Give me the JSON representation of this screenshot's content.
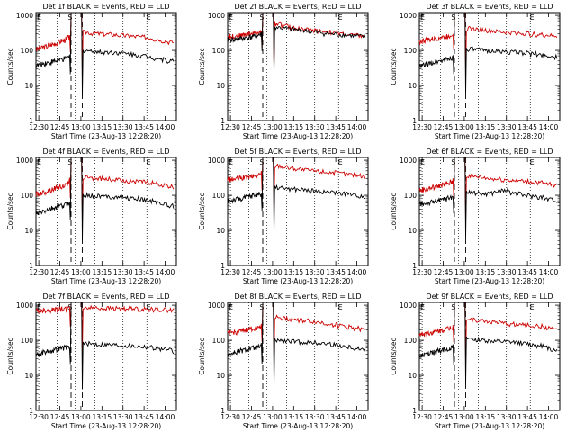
{
  "chart_data": [
    {
      "type": "line",
      "title": "Det 1f BLACK = Events, RED = LLD",
      "xlabel": "Start Time (23-Aug-13 12:28:20)",
      "ylabel": "Counts/sec",
      "x_ticks": [
        "12:30",
        "12:45",
        "13:00",
        "13:15",
        "13:30",
        "13:45",
        "14:00"
      ],
      "y_ticks": [
        "1",
        "10",
        "100",
        "1000"
      ],
      "x_range_min": [
        0,
        100
      ],
      "y_log_range": [
        1,
        1200
      ],
      "scale": "log",
      "markers": [
        {
          "label": "E",
          "at_min": 0
        },
        {
          "label": "S",
          "at_min": 22
        },
        {
          "label": "E",
          "at_min": 78
        }
      ],
      "dotted_lines_min": [
        2,
        15,
        28,
        42,
        62,
        79
      ],
      "dashed_lines_min": [
        25,
        33
      ],
      "series": [
        {
          "color": "#cc0000",
          "baseline": [
            110,
            115,
            125,
            130,
            140,
            150,
            160,
            175,
            190,
            200,
            230,
            300
          ],
          "peak": 1200,
          "tail": [
            330,
            310,
            300,
            290,
            280,
            270,
            260,
            250,
            240,
            230,
            210,
            190,
            175,
            170
          ]
        },
        {
          "color": "#000000",
          "baseline": [
            38,
            40,
            42,
            45,
            45,
            48,
            50,
            52,
            55,
            58,
            62,
            70
          ],
          "peak": 1200,
          "tail": [
            100,
            95,
            90,
            90,
            88,
            85,
            80,
            75,
            70,
            65,
            60,
            55,
            50,
            48
          ]
        }
      ]
    },
    {
      "type": "line",
      "title": "Det 2f BLACK = Events, RED = LLD",
      "xlabel": "Start Time (23-Aug-13 12:28:20)",
      "ylabel": "Counts/sec",
      "x_ticks": [
        "12:30",
        "12:45",
        "13:00",
        "13:15",
        "13:30",
        "13:45",
        "14:00"
      ],
      "y_ticks": [
        "1",
        "10",
        "100",
        "1000"
      ],
      "x_range_min": [
        0,
        100
      ],
      "y_log_range": [
        1,
        1200
      ],
      "scale": "log",
      "markers": [
        {
          "label": "E",
          "at_min": 0
        },
        {
          "label": "S",
          "at_min": 22
        },
        {
          "label": "E",
          "at_min": 78
        }
      ],
      "dotted_lines_min": [
        2,
        15,
        28,
        42,
        62,
        79
      ],
      "dashed_lines_min": [
        25,
        33
      ],
      "series": [
        {
          "color": "#cc0000",
          "baseline": [
            250,
            255,
            260,
            265,
            270,
            280,
            290,
            300,
            310,
            320,
            340,
            400
          ],
          "peak": 1200,
          "tail": [
            600,
            500,
            450,
            420,
            400,
            380,
            360,
            340,
            320,
            300,
            280,
            270,
            260,
            250
          ]
        },
        {
          "color": "#000000",
          "baseline": [
            200,
            205,
            210,
            215,
            220,
            225,
            230,
            240,
            250,
            260,
            280,
            320
          ],
          "peak": 1200,
          "tail": [
            450,
            420,
            400,
            380,
            360,
            340,
            320,
            300,
            290,
            280,
            270,
            260,
            250,
            240
          ]
        }
      ]
    },
    {
      "type": "line",
      "title": "Det 3f BLACK = Events, RED = LLD",
      "xlabel": "Start Time (23-Aug-13 12:28:20)",
      "ylabel": "Counts/sec",
      "x_ticks": [
        "12:30",
        "12:45",
        "13:00",
        "13:15",
        "13:30",
        "13:45",
        "14:00"
      ],
      "y_ticks": [
        "1",
        "10",
        "100",
        "1000"
      ],
      "x_range_min": [
        0,
        100
      ],
      "y_log_range": [
        1,
        1200
      ],
      "scale": "log",
      "markers": [
        {
          "label": "E",
          "at_min": 0
        },
        {
          "label": "S",
          "at_min": 22
        },
        {
          "label": "E",
          "at_min": 78
        }
      ],
      "dotted_lines_min": [
        2,
        15,
        28,
        42,
        62,
        79
      ],
      "dashed_lines_min": [
        25,
        33
      ],
      "series": [
        {
          "color": "#cc0000",
          "baseline": [
            180,
            190,
            200,
            200,
            210,
            220,
            230,
            240,
            250,
            260,
            280,
            340
          ],
          "peak": 1200,
          "tail": [
            420,
            400,
            380,
            360,
            340,
            330,
            320,
            310,
            300,
            290,
            280,
            270,
            260,
            250
          ]
        },
        {
          "color": "#000000",
          "baseline": [
            35,
            38,
            40,
            42,
            45,
            48,
            50,
            52,
            55,
            58,
            62,
            70
          ],
          "peak": 1200,
          "tail": [
            110,
            105,
            100,
            98,
            95,
            92,
            90,
            88,
            85,
            80,
            75,
            70,
            65,
            60
          ]
        }
      ]
    },
    {
      "type": "line",
      "title": "Det 4f BLACK = Events, RED = LLD",
      "xlabel": "Start Time (23-Aug-13 12:28:20)",
      "ylabel": "Counts/sec",
      "x_ticks": [
        "12:30",
        "12:45",
        "13:00",
        "13:15",
        "13:30",
        "13:45",
        "14:00"
      ],
      "y_ticks": [
        "1",
        "10",
        "100",
        "1000"
      ],
      "x_range_min": [
        0,
        100
      ],
      "y_log_range": [
        1,
        1200
      ],
      "scale": "log",
      "markers": [
        {
          "label": "E",
          "at_min": 0
        },
        {
          "label": "S",
          "at_min": 22
        },
        {
          "label": "E",
          "at_min": 78
        }
      ],
      "dotted_lines_min": [
        2,
        15,
        28,
        42,
        62,
        79
      ],
      "dashed_lines_min": [
        25,
        33
      ],
      "series": [
        {
          "color": "#cc0000",
          "baseline": [
            110,
            115,
            120,
            130,
            140,
            150,
            160,
            170,
            180,
            190,
            220,
            280
          ],
          "peak": 1200,
          "tail": [
            330,
            310,
            300,
            290,
            280,
            270,
            260,
            250,
            240,
            230,
            210,
            190,
            175,
            165
          ]
        },
        {
          "color": "#000000",
          "baseline": [
            30,
            32,
            35,
            38,
            40,
            42,
            45,
            48,
            50,
            55,
            60,
            65
          ],
          "peak": 1200,
          "tail": [
            100,
            98,
            95,
            92,
            90,
            88,
            85,
            80,
            75,
            70,
            65,
            58,
            50,
            45
          ]
        }
      ]
    },
    {
      "type": "line",
      "title": "Det 5f BLACK = Events, RED = LLD",
      "xlabel": "Start Time (23-Aug-13 12:28:20)",
      "ylabel": "Counts/sec",
      "x_ticks": [
        "12:30",
        "12:45",
        "13:00",
        "13:15",
        "13:30",
        "13:45",
        "14:00"
      ],
      "y_ticks": [
        "1",
        "10",
        "100",
        "1000"
      ],
      "x_range_min": [
        0,
        100
      ],
      "y_log_range": [
        1,
        1200
      ],
      "scale": "log",
      "markers": [
        {
          "label": "E",
          "at_min": 0
        },
        {
          "label": "S",
          "at_min": 22
        },
        {
          "label": "E",
          "at_min": 78
        }
      ],
      "dotted_lines_min": [
        2,
        15,
        28,
        42,
        62,
        79
      ],
      "dashed_lines_min": [
        25,
        33
      ],
      "series": [
        {
          "color": "#cc0000",
          "baseline": [
            280,
            285,
            290,
            300,
            310,
            320,
            330,
            340,
            350,
            360,
            380,
            450
          ],
          "peak": 1200,
          "tail": [
            700,
            650,
            600,
            560,
            520,
            500,
            480,
            460,
            440,
            420,
            400,
            380,
            360,
            340
          ]
        },
        {
          "color": "#000000",
          "baseline": [
            70,
            72,
            75,
            78,
            80,
            85,
            90,
            95,
            100,
            105,
            110,
            120
          ],
          "peak": 1200,
          "tail": [
            170,
            160,
            150,
            145,
            140,
            135,
            130,
            125,
            120,
            115,
            110,
            100,
            95,
            90
          ]
        }
      ]
    },
    {
      "type": "line",
      "title": "Det 6f BLACK = Events, RED = LLD",
      "xlabel": "Start Time (23-Aug-13 12:28:20)",
      "ylabel": "Counts/sec",
      "x_ticks": [
        "12:30",
        "12:45",
        "13:00",
        "13:15",
        "13:30",
        "13:45",
        "14:00"
      ],
      "y_ticks": [
        "1",
        "10",
        "100",
        "1000"
      ],
      "x_range_min": [
        0,
        100
      ],
      "y_log_range": [
        1,
        1200
      ],
      "scale": "log",
      "markers": [
        {
          "label": "E",
          "at_min": 0
        },
        {
          "label": "S",
          "at_min": 22
        },
        {
          "label": "E",
          "at_min": 78
        }
      ],
      "dotted_lines_min": [
        2,
        15,
        28,
        42,
        62,
        79
      ],
      "dashed_lines_min": [
        25,
        33
      ],
      "series": [
        {
          "color": "#cc0000",
          "baseline": [
            140,
            145,
            150,
            160,
            170,
            180,
            190,
            200,
            210,
            220,
            240,
            290
          ],
          "peak": 1200,
          "tail": [
            360,
            340,
            320,
            300,
            290,
            280,
            270,
            260,
            250,
            240,
            230,
            210,
            200,
            190
          ]
        },
        {
          "color": "#000000",
          "baseline": [
            55,
            58,
            60,
            62,
            65,
            68,
            70,
            75,
            80,
            85,
            90,
            100
          ],
          "peak": 1200,
          "tail": [
            120,
            115,
            110,
            115,
            130,
            140,
            120,
            110,
            100,
            95,
            90,
            80,
            75,
            70
          ]
        }
      ]
    },
    {
      "type": "line",
      "title": "Det 7f BLACK = Events, RED = LLD",
      "xlabel": "Start Time (23-Aug-13 12:28:20)",
      "ylabel": "Counts/sec",
      "x_ticks": [
        "12:30",
        "12:45",
        "13:00",
        "13:15",
        "13:30",
        "13:45",
        "14:00"
      ],
      "y_ticks": [
        "1",
        "10",
        "100",
        "1000"
      ],
      "x_range_min": [
        0,
        100
      ],
      "y_log_range": [
        1,
        1200
      ],
      "scale": "log",
      "markers": [
        {
          "label": "E",
          "at_min": 0
        },
        {
          "label": "S",
          "at_min": 22
        },
        {
          "label": "E",
          "at_min": 78
        }
      ],
      "dotted_lines_min": [
        2,
        15,
        28,
        42,
        62,
        79
      ],
      "dashed_lines_min": [
        25,
        33
      ],
      "series": [
        {
          "color": "#cc0000",
          "baseline": [
            700,
            710,
            720,
            730,
            740,
            750,
            760,
            770,
            780,
            790,
            800,
            820
          ],
          "peak": 1200,
          "tail": [
            850,
            840,
            830,
            820,
            810,
            800,
            790,
            780,
            770,
            760,
            750,
            740,
            730,
            720
          ]
        },
        {
          "color": "#000000",
          "baseline": [
            40,
            42,
            45,
            48,
            50,
            52,
            55,
            58,
            60,
            62,
            65,
            70
          ],
          "peak": 1200,
          "tail": [
            80,
            78,
            76,
            75,
            74,
            72,
            70,
            68,
            66,
            64,
            60,
            56,
            52,
            48
          ]
        }
      ]
    },
    {
      "type": "line",
      "title": "Det 8f BLACK = Events, RED = LLD",
      "xlabel": "Start Time (23-Aug-13 12:28:20)",
      "ylabel": "Counts/sec",
      "x_ticks": [
        "12:30",
        "12:45",
        "13:00",
        "13:15",
        "13:30",
        "13:45",
        "14:00"
      ],
      "y_ticks": [
        "1",
        "10",
        "100",
        "1000"
      ],
      "x_range_min": [
        0,
        100
      ],
      "y_log_range": [
        1,
        1200
      ],
      "scale": "log",
      "markers": [
        {
          "label": "E",
          "at_min": 0
        },
        {
          "label": "S",
          "at_min": 22
        },
        {
          "label": "E",
          "at_min": 78
        }
      ],
      "dotted_lines_min": [
        2,
        15,
        28,
        42,
        62,
        79
      ],
      "dashed_lines_min": [
        25,
        33
      ],
      "series": [
        {
          "color": "#cc0000",
          "baseline": [
            160,
            165,
            170,
            175,
            180,
            190,
            200,
            210,
            220,
            230,
            250,
            300
          ],
          "peak": 1200,
          "tail": [
            450,
            420,
            400,
            380,
            360,
            340,
            320,
            300,
            280,
            260,
            240,
            220,
            200,
            190
          ]
        },
        {
          "color": "#000000",
          "baseline": [
            40,
            42,
            45,
            48,
            50,
            52,
            55,
            58,
            60,
            62,
            65,
            72
          ],
          "peak": 1200,
          "tail": [
            100,
            95,
            92,
            90,
            88,
            85,
            82,
            80,
            75,
            70,
            65,
            60,
            55,
            50
          ]
        }
      ]
    },
    {
      "type": "line",
      "title": "Det 9f BLACK = Events, RED = LLD",
      "xlabel": "Start Time (23-Aug-13 12:28:20)",
      "ylabel": "Counts/sec",
      "x_ticks": [
        "12:30",
        "12:45",
        "13:00",
        "13:15",
        "13:30",
        "13:45",
        "14:00"
      ],
      "y_ticks": [
        "1",
        "10",
        "100",
        "1000"
      ],
      "x_range_min": [
        0,
        100
      ],
      "y_log_range": [
        1,
        1200
      ],
      "scale": "log",
      "markers": [
        {
          "label": "E",
          "at_min": 0
        },
        {
          "label": "S",
          "at_min": 22
        },
        {
          "label": "E",
          "at_min": 78
        }
      ],
      "dotted_lines_min": [
        2,
        15,
        28,
        42,
        62,
        79
      ],
      "dashed_lines_min": [
        25,
        33
      ],
      "series": [
        {
          "color": "#cc0000",
          "baseline": [
            150,
            155,
            160,
            165,
            170,
            180,
            190,
            200,
            210,
            220,
            240,
            290
          ],
          "peak": 1200,
          "tail": [
            400,
            380,
            360,
            340,
            320,
            300,
            290,
            280,
            270,
            260,
            250,
            230,
            210,
            200
          ]
        },
        {
          "color": "#000000",
          "baseline": [
            35,
            38,
            40,
            42,
            45,
            48,
            50,
            52,
            55,
            58,
            60,
            68
          ],
          "peak": 1200,
          "tail": [
            110,
            105,
            100,
            95,
            92,
            90,
            88,
            85,
            80,
            75,
            70,
            62,
            55,
            50
          ]
        }
      ]
    }
  ]
}
